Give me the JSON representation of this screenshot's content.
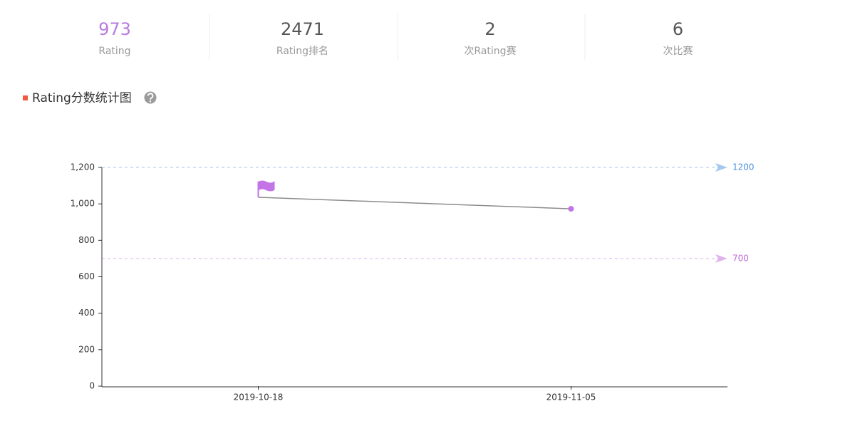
{
  "stats": [
    {
      "value": 973,
      "label": "Rating"
    },
    {
      "value": 2471,
      "label": "Rating排名"
    },
    {
      "value": 2,
      "label": "次Rating赛"
    },
    {
      "value": 6,
      "label": "次比赛"
    }
  ],
  "chart_data": {
    "type": "line",
    "title": "Rating分数统计图",
    "categories": [
      "2019-10-18",
      "2019-11-05"
    ],
    "values": [
      1036,
      973
    ],
    "color": "#8c8c8c",
    "marker_color": "#c374e6",
    "ylim": [
      0,
      1200
    ],
    "yticks": [
      0,
      200,
      400,
      600,
      800,
      {
        "value": 1000,
        "label": "1,000"
      },
      {
        "value": 1200,
        "label": "1,200"
      }
    ],
    "mark_lines": [
      {
        "value": 1200,
        "color": "#4a90e2"
      },
      {
        "value": 700,
        "color": "#c06ad8"
      }
    ]
  }
}
